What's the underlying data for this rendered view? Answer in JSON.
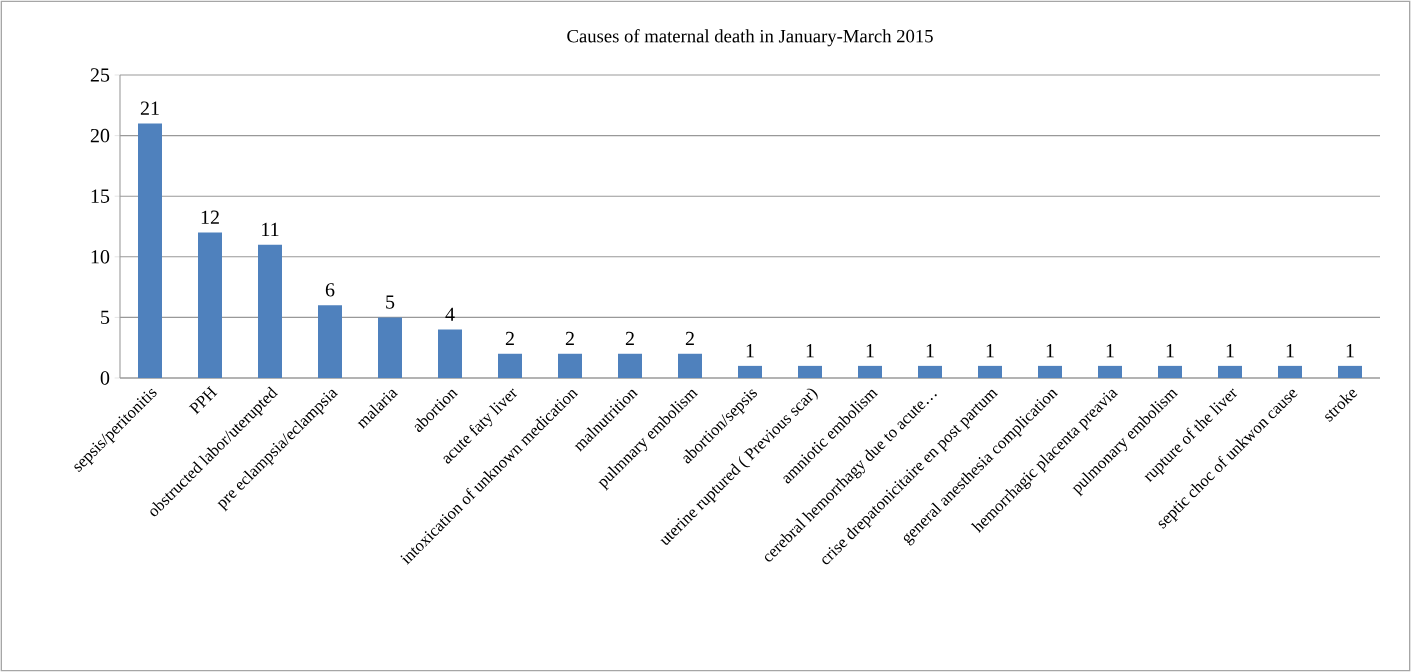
{
  "chart_data": {
    "type": "bar",
    "title": "Causes of maternal death in January-March 2015",
    "categories": [
      "sepsis/peritonitis",
      "PPH",
      "obstructed labor/uterupted",
      "pre eclampsia/eclampsia",
      "malaria",
      "abortion",
      "acute faty liver",
      "intoxication of unknown medication",
      "malnutrition",
      "pulmnary embolism",
      "abortion/sepsis",
      "uterine ruptured ( Previous scar)",
      "amniotic embolism",
      "cerebral hemorrhagy due to acute…",
      "crise drepatonicitaire en post partum",
      "general anesthesia complication",
      "hemorrhagic placenta preavia",
      "pulmonary embolism",
      "rupture of the liver",
      "septic choc of unkwon cause",
      "stroke"
    ],
    "values": [
      21,
      12,
      11,
      6,
      5,
      4,
      2,
      2,
      2,
      2,
      1,
      1,
      1,
      1,
      1,
      1,
      1,
      1,
      1,
      1,
      1
    ],
    "color": "#4f81bd",
    "ylim": [
      0,
      25
    ],
    "yticks": [
      0,
      5,
      10,
      15,
      20,
      25
    ],
    "grid": "y",
    "data_labels": true
  }
}
